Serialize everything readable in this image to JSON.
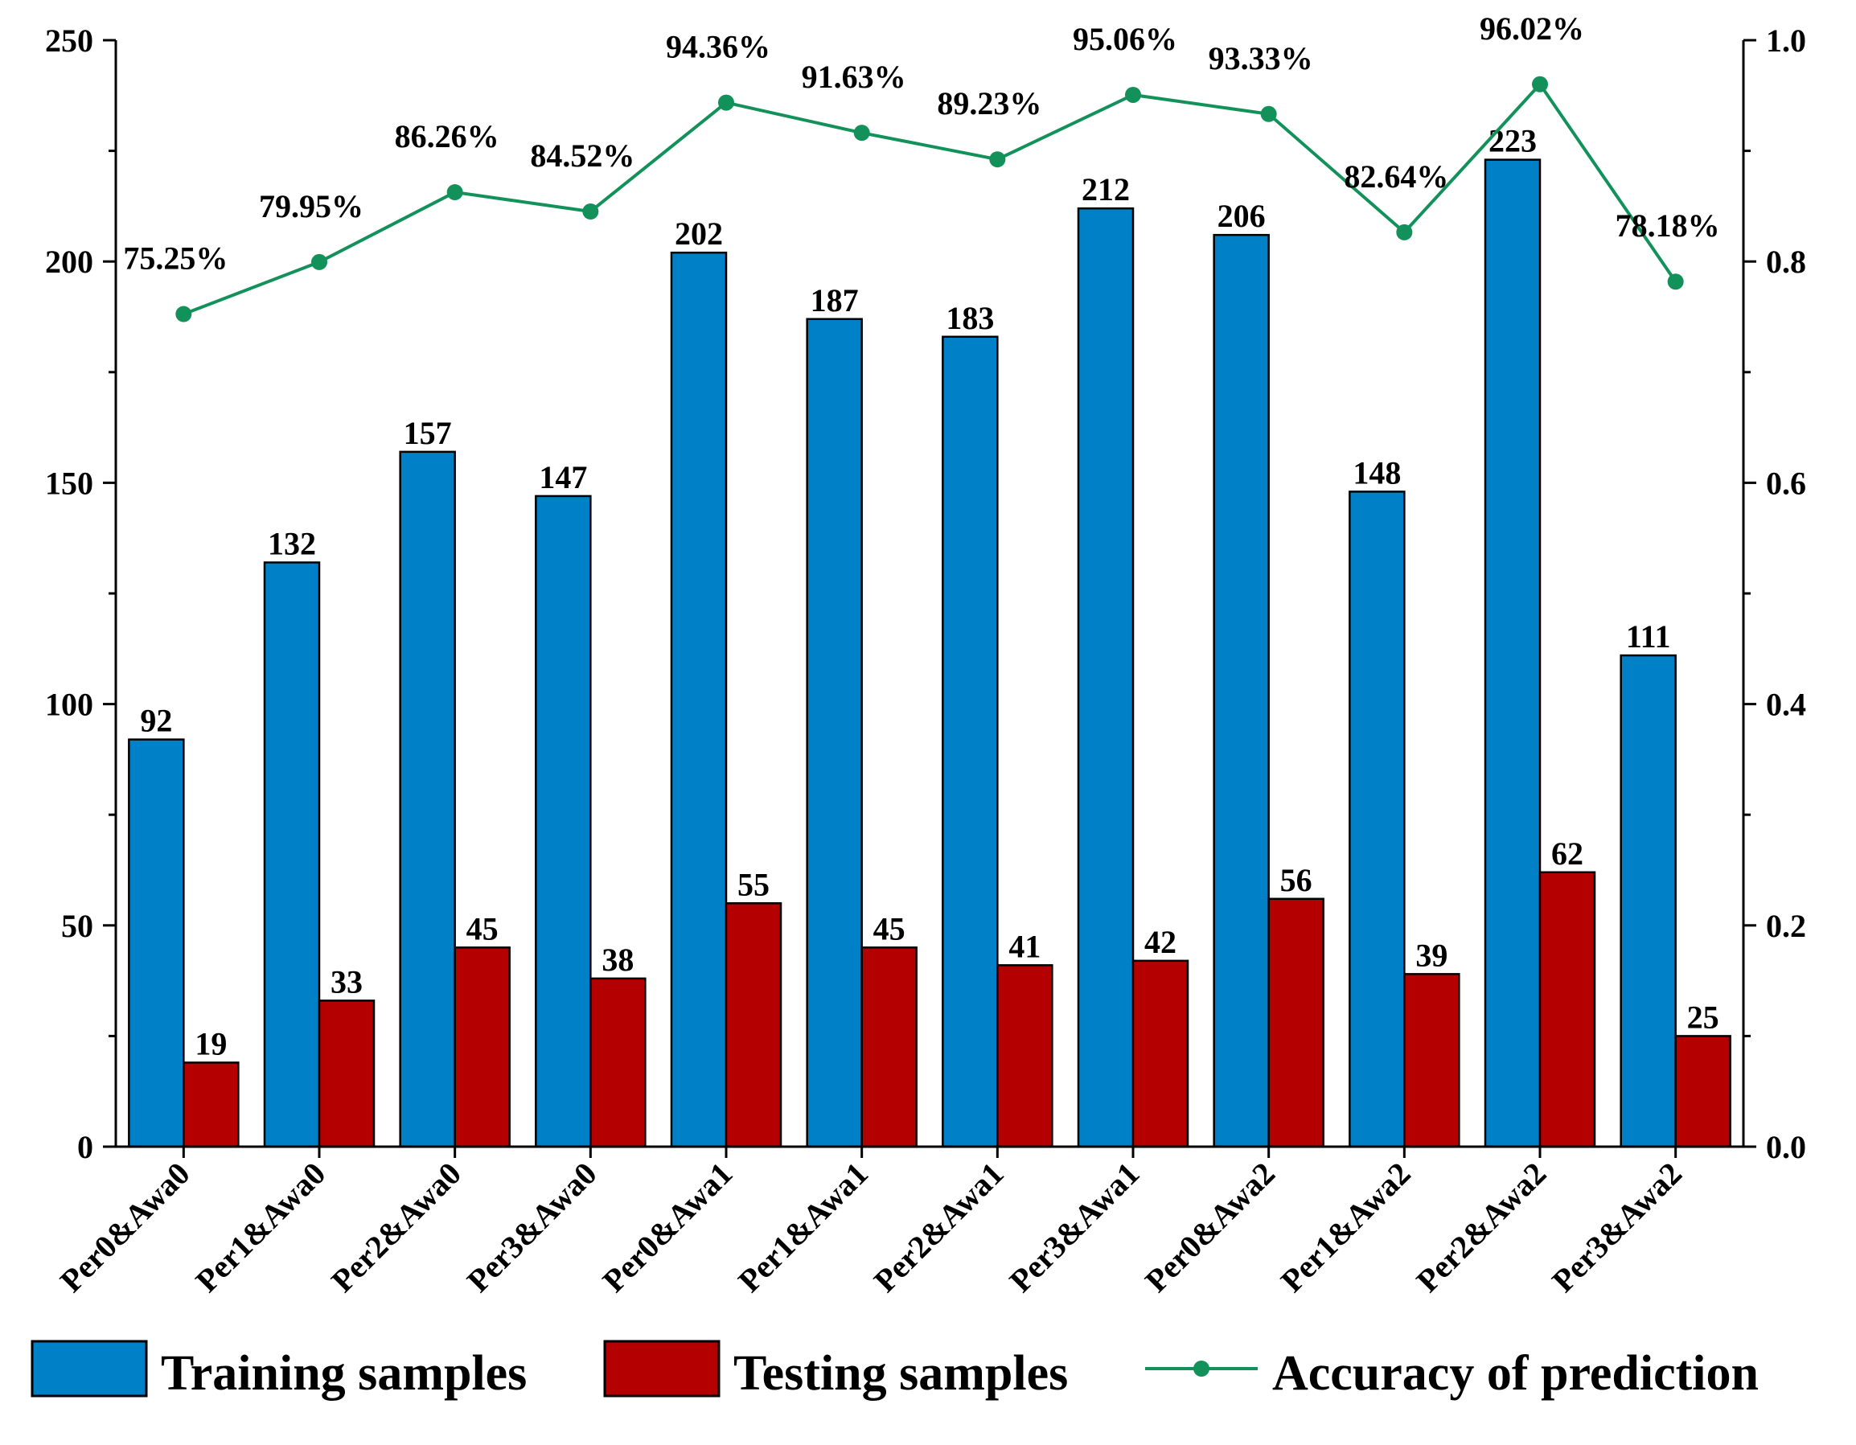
{
  "chart_data": {
    "type": "bar",
    "categories": [
      "Per0&Awa0",
      "Per1&Awa0",
      "Per2&Awa0",
      "Per3&Awa0",
      "Per0&Awa1",
      "Per1&Awa1",
      "Per2&Awa1",
      "Per3&Awa1",
      "Per0&Awa2",
      "Per1&Awa2",
      "Per2&Awa2",
      "Per3&Awa2"
    ],
    "series": [
      {
        "name": "Training samples",
        "kind": "bar",
        "axis": "left",
        "color": "#0080c6",
        "values": [
          92,
          132,
          157,
          147,
          202,
          187,
          183,
          212,
          206,
          148,
          223,
          111
        ],
        "labels": [
          "92",
          "132",
          "157",
          "147",
          "202",
          "187",
          "183",
          "212",
          "206",
          "148",
          "223",
          "111"
        ]
      },
      {
        "name": "Testing samples",
        "kind": "bar",
        "axis": "left",
        "color": "#b50000",
        "values": [
          19,
          33,
          45,
          38,
          55,
          45,
          41,
          42,
          56,
          39,
          62,
          25
        ],
        "labels": [
          "19",
          "33",
          "45",
          "38",
          "55",
          "45",
          "41",
          "42",
          "56",
          "39",
          "62",
          "25"
        ]
      },
      {
        "name": "Accuracy of prediction",
        "kind": "line",
        "axis": "right",
        "color": "#13915a",
        "values": [
          0.7525,
          0.7995,
          0.8626,
          0.8452,
          0.9436,
          0.9163,
          0.8923,
          0.9506,
          0.9333,
          0.8264,
          0.9602,
          0.7818
        ],
        "labels": [
          "75.25%",
          "79.95%",
          "86.26%",
          "84.52%",
          "94.36%",
          "91.63%",
          "89.23%",
          "95.06%",
          "93.33%",
          "82.64%",
          "96.02%",
          "78.18%"
        ]
      }
    ],
    "left_axis": {
      "min": 0,
      "max": 250,
      "ticks": [
        "0",
        "50",
        "100",
        "150",
        "200",
        "250"
      ],
      "tick_values": [
        0,
        50,
        100,
        150,
        200,
        250
      ]
    },
    "right_axis": {
      "min": 0,
      "max": 1.0,
      "ticks": [
        "0.0",
        "0.2",
        "0.4",
        "0.6",
        "0.8",
        "1.0"
      ],
      "tick_values": [
        0,
        0.2,
        0.4,
        0.6,
        0.8,
        1.0
      ]
    },
    "legend_position": "bottom",
    "grid": false
  }
}
